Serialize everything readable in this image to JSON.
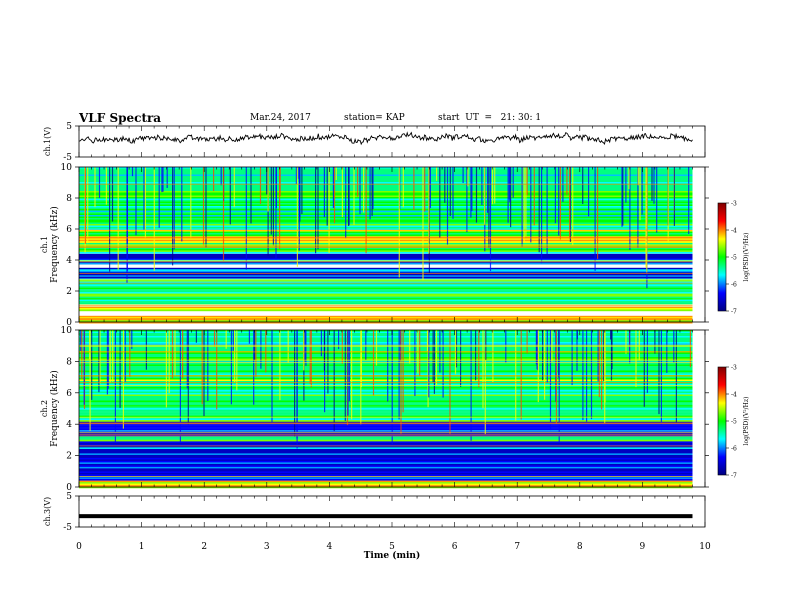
{
  "header": {
    "title": "VLF Spectra",
    "date": "Mar.24, 2017",
    "station": "station= KAP",
    "start_ut": "start  UT  =   21: 30: 1"
  },
  "colors": {
    "colormap": [
      "#000080",
      "#0000ff",
      "#00ffff",
      "#00ff00",
      "#ffff00",
      "#ff0000",
      "#800000"
    ],
    "trace": "#000000",
    "axes": "#000000"
  },
  "chart_data": [
    {
      "type": "line",
      "panel": "ch.1(V)",
      "ylabel": "ch.1(V)",
      "ylim": [
        -5,
        5
      ],
      "yticks": [
        "5",
        "-5"
      ],
      "x_range": [
        0,
        9.8
      ],
      "mean": 1.0,
      "amplitude": 1.5
    },
    {
      "type": "heatmap",
      "panel": "ch.1 spectrogram",
      "ylabel": [
        "ch.1",
        "Frequency (kHz)"
      ],
      "ylim": [
        0,
        10
      ],
      "yticks": [
        "0",
        "2",
        "4",
        "6",
        "8",
        "10"
      ],
      "x_range": [
        0,
        9.8
      ],
      "colorbar": {
        "label": "log(PSD)(V²/Hz)",
        "ticks": [
          "-3",
          "-4",
          "-5",
          "-6",
          "-7"
        ],
        "range": [
          -7,
          -3
        ]
      },
      "bands_khz": [
        {
          "from": 0,
          "to": 0.4,
          "level": "high"
        },
        {
          "from": 0.8,
          "to": 1.0,
          "level": "high"
        },
        {
          "from": 1.2,
          "to": 2.8,
          "level": "mid"
        },
        {
          "from": 2.9,
          "to": 3.5,
          "level": "low"
        },
        {
          "from": 3.8,
          "to": 4.4,
          "level": "low"
        },
        {
          "from": 4.5,
          "to": 5.2,
          "level": "mid"
        },
        {
          "from": 5.2,
          "to": 5.6,
          "level": "high"
        },
        {
          "from": 5.6,
          "to": 10,
          "level": "mid"
        }
      ]
    },
    {
      "type": "heatmap",
      "panel": "ch.2 spectrogram",
      "ylabel": [
        "ch.2",
        "Frequency (kHz)"
      ],
      "ylim": [
        0,
        10
      ],
      "yticks": [
        "0",
        "2",
        "4",
        "6",
        "8",
        "10"
      ],
      "x_range": [
        0,
        9.8
      ],
      "colorbar": {
        "label": "log(PSD)(V²/Hz)",
        "ticks": [
          "-3",
          "-4",
          "-5",
          "-6",
          "-7"
        ],
        "range": [
          -7,
          -3
        ]
      },
      "bands_khz": [
        {
          "from": 0,
          "to": 0.5,
          "level": "high"
        },
        {
          "from": 0.5,
          "to": 3.0,
          "level": "low"
        },
        {
          "from": 3.0,
          "to": 3.3,
          "level": "mid"
        },
        {
          "from": 3.3,
          "to": 4.2,
          "level": "low"
        },
        {
          "from": 4.2,
          "to": 5.5,
          "level": "mid"
        },
        {
          "from": 5.5,
          "to": 10,
          "level": "mid"
        }
      ]
    },
    {
      "type": "line",
      "panel": "ch.3(V)",
      "ylabel": "ch.3(V)",
      "ylim": [
        -5,
        5
      ],
      "yticks": [
        "5",
        "-5"
      ],
      "x_range": [
        0,
        9.8
      ],
      "value": -1.5
    }
  ],
  "xaxis": {
    "label": "Time (min)",
    "ticks": [
      "0",
      "1",
      "2",
      "3",
      "4",
      "5",
      "6",
      "7",
      "8",
      "9",
      "10"
    ],
    "range": [
      0,
      10
    ]
  }
}
